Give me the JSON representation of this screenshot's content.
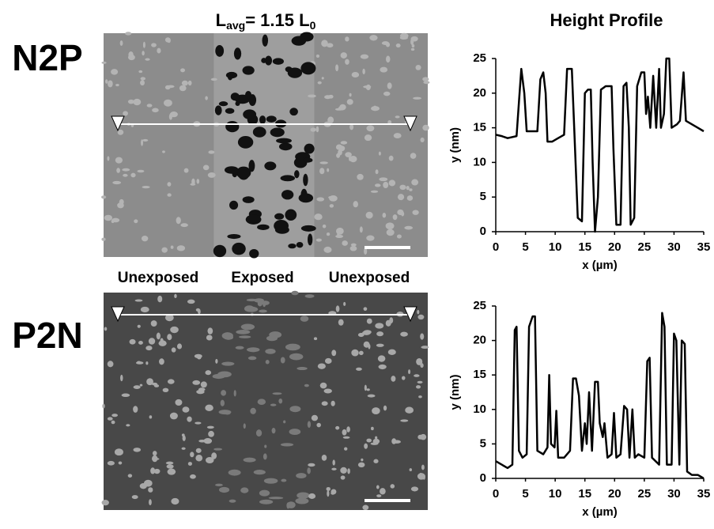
{
  "header": {
    "left_title": [
      "L",
      "avg",
      "= 1.15 L",
      "0"
    ],
    "right_title": "Height Profile"
  },
  "rows": [
    "N2P",
    "P2N"
  ],
  "columns": [
    "Unexposed",
    "Exposed",
    "Unexposed"
  ],
  "chart_data": [
    {
      "type": "line",
      "xlabel": "x (µm)",
      "ylabel": "y (nm)",
      "color": "#000000",
      "x": [
        0,
        1,
        2,
        3.5,
        4,
        4.3,
        4.8,
        5.2,
        6,
        7,
        7.5,
        8,
        8.4,
        8.7,
        9.5,
        10.5,
        11.5,
        12,
        12.8,
        13.2,
        13.8,
        14.5,
        15,
        15.5,
        16,
        16.3,
        16.7,
        17.2,
        17.7,
        18.5,
        19.5,
        19.8,
        20.3,
        21,
        21.5,
        22,
        22.4,
        22.7,
        23.3,
        23.8,
        24.5,
        25,
        25.3,
        25.6,
        26,
        26.5,
        27,
        27.5,
        27.8,
        28.3,
        28.7,
        29.2,
        29.6,
        30.5,
        31,
        31.6,
        32,
        33,
        34,
        35
      ],
      "values": [
        14,
        13.8,
        13.5,
        13.8,
        20,
        23.5,
        20,
        14.5,
        14.5,
        14.5,
        22,
        23,
        20,
        13,
        13,
        13.5,
        14,
        23.5,
        23.5,
        15,
        2,
        1.5,
        20,
        20.5,
        20.5,
        10,
        0,
        5,
        20.5,
        21,
        21,
        12,
        1,
        1,
        21,
        21.5,
        15,
        1,
        2,
        21,
        23,
        23,
        17,
        19.5,
        15,
        22.5,
        15,
        23.5,
        15,
        17,
        25,
        25,
        15,
        15.5,
        16,
        23,
        16,
        15.5,
        15,
        14.5
      ],
      "xlim": [
        0,
        35
      ],
      "ylim": [
        0,
        25
      ],
      "xticks": [
        0,
        5,
        10,
        15,
        20,
        25,
        30,
        35
      ],
      "yticks": [
        0,
        5,
        10,
        15,
        20,
        25
      ]
    },
    {
      "type": "line",
      "xlabel": "x (µm)",
      "ylabel": "y (nm)",
      "color": "#000000",
      "x": [
        0,
        1,
        2,
        2.8,
        3.2,
        3.5,
        3.9,
        4.5,
        5.2,
        5.6,
        6.2,
        6.6,
        7,
        8,
        8.7,
        9,
        9.3,
        9.9,
        10.2,
        10.5,
        11.5,
        12.5,
        13,
        13.5,
        14,
        14.5,
        15,
        15.3,
        15.7,
        16.2,
        16.7,
        17.2,
        17.5,
        18,
        18.3,
        18.8,
        19.5,
        19.9,
        20.3,
        21,
        21.6,
        22.1,
        22.5,
        23,
        23.4,
        24,
        25,
        25.5,
        25.9,
        26.3,
        27.5,
        28,
        28.4,
        28.8,
        29.6,
        30,
        30.4,
        30.9,
        31.3,
        31.8,
        32.2,
        33,
        34,
        35
      ],
      "values": [
        2.5,
        2,
        1.5,
        2,
        21.5,
        22,
        4,
        3,
        3.5,
        22,
        23.5,
        23.5,
        4,
        3.5,
        4.5,
        15,
        5,
        4.5,
        9.8,
        3,
        3,
        4,
        14.5,
        14.5,
        12,
        4,
        8,
        5,
        12.5,
        4,
        14,
        14,
        8,
        6,
        8,
        3,
        3.5,
        9.5,
        3,
        3.5,
        10.5,
        10,
        3,
        10,
        3,
        3.5,
        3,
        17,
        17.5,
        3,
        2,
        24,
        22,
        2,
        2,
        21,
        20,
        2,
        20,
        19.5,
        1,
        0.5,
        0.5,
        0
      ],
      "xlim": [
        0,
        35
      ],
      "ylim": [
        0,
        25
      ],
      "xticks": [
        0,
        5,
        10,
        15,
        20,
        25,
        30,
        35
      ],
      "yticks": [
        0,
        5,
        10,
        15,
        20,
        25
      ]
    }
  ]
}
